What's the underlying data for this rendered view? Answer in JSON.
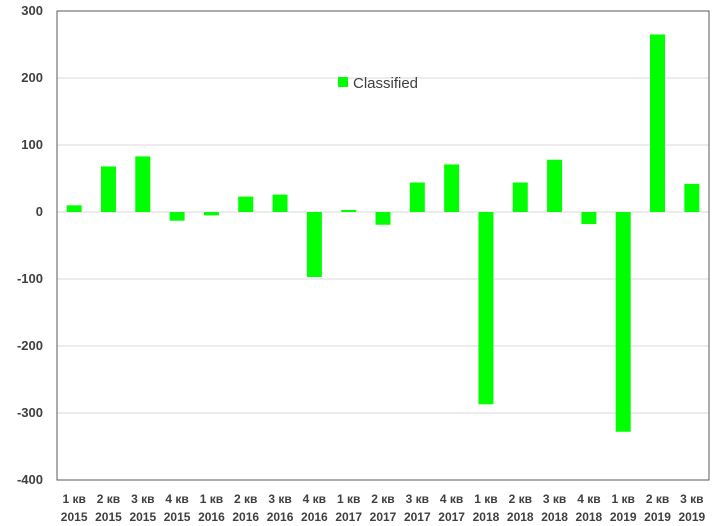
{
  "chart_data": {
    "type": "bar",
    "categories": [
      [
        "1 кв",
        "2015"
      ],
      [
        "2 кв",
        "2015"
      ],
      [
        "3 кв",
        "2015"
      ],
      [
        "4 кв",
        "2015"
      ],
      [
        "1 кв",
        "2016"
      ],
      [
        "2 кв",
        "2016"
      ],
      [
        "3 кв",
        "2016"
      ],
      [
        "4 кв",
        "2016"
      ],
      [
        "1 кв",
        "2017"
      ],
      [
        "2 кв",
        "2017"
      ],
      [
        "3 кв",
        "2017"
      ],
      [
        "4 кв",
        "2017"
      ],
      [
        "1 кв",
        "2018"
      ],
      [
        "2 кв",
        "2018"
      ],
      [
        "3 кв",
        "2018"
      ],
      [
        "4 кв",
        "2018"
      ],
      [
        "1 кв",
        "2019"
      ],
      [
        "2 кв",
        "2019"
      ],
      [
        "3 кв",
        "2019"
      ]
    ],
    "series": [
      {
        "name": "Classified",
        "color": "#00ff00",
        "values": [
          10,
          68,
          83,
          -13,
          -5,
          23,
          26,
          -97,
          3,
          -19,
          44,
          71,
          -287,
          44,
          78,
          -18,
          -328,
          265,
          42
        ]
      }
    ],
    "yticks": [
      "300",
      "200",
      "100",
      "0",
      "-100",
      "-200",
      "-300",
      "-400"
    ],
    "ylim": [
      -400,
      300
    ],
    "grid": true,
    "legend": "top-center"
  }
}
